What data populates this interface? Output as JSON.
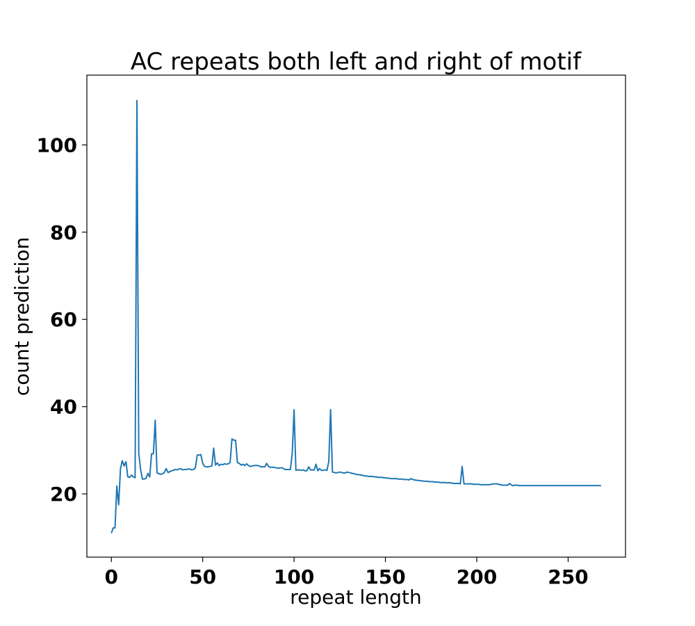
{
  "chart_data": {
    "type": "line",
    "title": "AC repeats both left and right of motif",
    "xlabel": "repeat length",
    "ylabel": "count prediction",
    "xlim": [
      -13.4,
      281.4
    ],
    "ylim": [
      5.5,
      116
    ],
    "xticks": [
      0,
      50,
      100,
      150,
      200,
      250
    ],
    "yticks": [
      20,
      40,
      60,
      80,
      100
    ],
    "grid": false,
    "line_color": "#1f77b4",
    "series": [
      {
        "points": [
          [
            0,
            11
          ],
          [
            1,
            12.2
          ],
          [
            2,
            12.2
          ],
          [
            3,
            21.8
          ],
          [
            4,
            17.5
          ],
          [
            5,
            25.8
          ],
          [
            6,
            27.6
          ],
          [
            7,
            26.4
          ],
          [
            8,
            27.4
          ],
          [
            9,
            23.9
          ],
          [
            10,
            23.8
          ],
          [
            11,
            24.3
          ],
          [
            12,
            23.9
          ],
          [
            13,
            23.7
          ],
          [
            14,
            110.2
          ],
          [
            15,
            29.3
          ],
          [
            16,
            25.6
          ],
          [
            17,
            23.4
          ],
          [
            18,
            23.4
          ],
          [
            19,
            23.6
          ],
          [
            20,
            24.7
          ],
          [
            21,
            23.9
          ],
          [
            22,
            29.2
          ],
          [
            23,
            29.2
          ],
          [
            24,
            36.9
          ],
          [
            25,
            24.8
          ],
          [
            26,
            24.6
          ],
          [
            27,
            24.5
          ],
          [
            28,
            24.6
          ],
          [
            29,
            24.9
          ],
          [
            30,
            25.8
          ],
          [
            31,
            24.9
          ],
          [
            32,
            25.1
          ],
          [
            33,
            25.3
          ],
          [
            34,
            25.4
          ],
          [
            35,
            25.6
          ],
          [
            36,
            25.5
          ],
          [
            37,
            25.7
          ],
          [
            38,
            25.8
          ],
          [
            39,
            25.5
          ],
          [
            40,
            25.6
          ],
          [
            41,
            25.6
          ],
          [
            42,
            25.7
          ],
          [
            43,
            25.7
          ],
          [
            44,
            25.5
          ],
          [
            45,
            25.6
          ],
          [
            46,
            26
          ],
          [
            47,
            28.9
          ],
          [
            48,
            28.9
          ],
          [
            49,
            29
          ],
          [
            50,
            27
          ],
          [
            51,
            26.3
          ],
          [
            52,
            26.2
          ],
          [
            53,
            26.2
          ],
          [
            54,
            26.3
          ],
          [
            55,
            26.4
          ],
          [
            56,
            30.5
          ],
          [
            57,
            26.6
          ],
          [
            58,
            27.1
          ],
          [
            59,
            26.5
          ],
          [
            60,
            26.8
          ],
          [
            61,
            26.7
          ],
          [
            62,
            26.9
          ],
          [
            63,
            26.8
          ],
          [
            64,
            26.9
          ],
          [
            65,
            27.2
          ],
          [
            66,
            32.6
          ],
          [
            67,
            32.3
          ],
          [
            68,
            32.3
          ],
          [
            69,
            27.2
          ],
          [
            70,
            27
          ],
          [
            71,
            26.6
          ],
          [
            72,
            26.8
          ],
          [
            73,
            26.5
          ],
          [
            74,
            26.9
          ],
          [
            75,
            26.5
          ],
          [
            76,
            26.3
          ],
          [
            77,
            26.4
          ],
          [
            78,
            26.5
          ],
          [
            79,
            26.5
          ],
          [
            80,
            26.5
          ],
          [
            81,
            26.4
          ],
          [
            82,
            26.2
          ],
          [
            83,
            26.2
          ],
          [
            84,
            26.2
          ],
          [
            85,
            27
          ],
          [
            86,
            26.3
          ],
          [
            87,
            26.1
          ],
          [
            88,
            26.1
          ],
          [
            89,
            26.1
          ],
          [
            90,
            26
          ],
          [
            91,
            25.9
          ],
          [
            92,
            25.9
          ],
          [
            93,
            26
          ],
          [
            94,
            25.9
          ],
          [
            95,
            25.6
          ],
          [
            96,
            25.6
          ],
          [
            97,
            25.6
          ],
          [
            98,
            25.6
          ],
          [
            99,
            29.3
          ],
          [
            100,
            39.3
          ],
          [
            101,
            25.4
          ],
          [
            102,
            25.5
          ],
          [
            103,
            25.5
          ],
          [
            104,
            25.4
          ],
          [
            105,
            25.5
          ],
          [
            106,
            25.3
          ],
          [
            107,
            25.3
          ],
          [
            108,
            26.2
          ],
          [
            109,
            25.5
          ],
          [
            110,
            25.5
          ],
          [
            111,
            25.5
          ],
          [
            112,
            26.8
          ],
          [
            113,
            25.3
          ],
          [
            114,
            25.8
          ],
          [
            115,
            25.4
          ],
          [
            116,
            25.4
          ],
          [
            117,
            25.5
          ],
          [
            118,
            25.4
          ],
          [
            119,
            27.4
          ],
          [
            120,
            39.3
          ],
          [
            121,
            25
          ],
          [
            122,
            24.9
          ],
          [
            123,
            24.8
          ],
          [
            124,
            24.9
          ],
          [
            125,
            25
          ],
          [
            126,
            24.9
          ],
          [
            127,
            24.8
          ],
          [
            128,
            24.8
          ],
          [
            129,
            25
          ],
          [
            130,
            24.9
          ],
          [
            131,
            24.8
          ],
          [
            132,
            24.7
          ],
          [
            133,
            24.6
          ],
          [
            134,
            24.5
          ],
          [
            135,
            24.4
          ],
          [
            136,
            24.4
          ],
          [
            137,
            24.3
          ],
          [
            138,
            24.2
          ],
          [
            139,
            24.1
          ],
          [
            140,
            24.1
          ],
          [
            141,
            24
          ],
          [
            142,
            24
          ],
          [
            143,
            24
          ],
          [
            144,
            23.9
          ],
          [
            145,
            23.9
          ],
          [
            146,
            23.8
          ],
          [
            147,
            23.8
          ],
          [
            148,
            23.8
          ],
          [
            149,
            23.7
          ],
          [
            150,
            23.7
          ],
          [
            151,
            23.6
          ],
          [
            152,
            23.6
          ],
          [
            153,
            23.5
          ],
          [
            154,
            23.5
          ],
          [
            155,
            23.5
          ],
          [
            156,
            23.5
          ],
          [
            157,
            23.4
          ],
          [
            158,
            23.4
          ],
          [
            159,
            23.4
          ],
          [
            160,
            23.3
          ],
          [
            161,
            23.3
          ],
          [
            162,
            23.3
          ],
          [
            163,
            23.2
          ],
          [
            164,
            23.5
          ],
          [
            165,
            23.3
          ],
          [
            166,
            23.2
          ],
          [
            167,
            23.1
          ],
          [
            168,
            23.1
          ],
          [
            169,
            23
          ],
          [
            170,
            23
          ],
          [
            171,
            22.9
          ],
          [
            172,
            22.9
          ],
          [
            173,
            22.9
          ],
          [
            174,
            22.8
          ],
          [
            175,
            22.8
          ],
          [
            176,
            22.8
          ],
          [
            177,
            22.7
          ],
          [
            178,
            22.7
          ],
          [
            179,
            22.7
          ],
          [
            180,
            22.6
          ],
          [
            181,
            22.6
          ],
          [
            182,
            22.6
          ],
          [
            183,
            22.6
          ],
          [
            184,
            22.5
          ],
          [
            185,
            22.6
          ],
          [
            186,
            22.5
          ],
          [
            187,
            22.4
          ],
          [
            188,
            22.4
          ],
          [
            189,
            22.4
          ],
          [
            190,
            22.4
          ],
          [
            191,
            22.3
          ],
          [
            192,
            26.3
          ],
          [
            193,
            22.3
          ],
          [
            194,
            22.3
          ],
          [
            195,
            22.3
          ],
          [
            196,
            22.3
          ],
          [
            197,
            22.3
          ],
          [
            198,
            22.2
          ],
          [
            199,
            22.2
          ],
          [
            200,
            22.2
          ],
          [
            201,
            22.2
          ],
          [
            202,
            22.1
          ],
          [
            203,
            22.1
          ],
          [
            204,
            22.1
          ],
          [
            205,
            22.1
          ],
          [
            206,
            22.1
          ],
          [
            207,
            22.1
          ],
          [
            208,
            22.2
          ],
          [
            209,
            22.3
          ],
          [
            210,
            22.3
          ],
          [
            211,
            22.3
          ],
          [
            212,
            22.2
          ],
          [
            213,
            22.1
          ],
          [
            214,
            22
          ],
          [
            215,
            22
          ],
          [
            216,
            22
          ],
          [
            217,
            22
          ],
          [
            218,
            22.4
          ],
          [
            219,
            22
          ],
          [
            220,
            21.9
          ],
          [
            221,
            22
          ],
          [
            222,
            22
          ],
          [
            223,
            21.9
          ],
          [
            224,
            21.9
          ],
          [
            225,
            21.9
          ],
          [
            226,
            21.9
          ],
          [
            227,
            21.9
          ],
          [
            228,
            21.9
          ],
          [
            229,
            21.9
          ],
          [
            230,
            21.9
          ],
          [
            231,
            21.9
          ],
          [
            232,
            21.9
          ],
          [
            233,
            21.9
          ],
          [
            234,
            21.9
          ],
          [
            235,
            21.9
          ],
          [
            236,
            21.9
          ],
          [
            237,
            21.9
          ],
          [
            238,
            21.9
          ],
          [
            239,
            21.9
          ],
          [
            240,
            21.9
          ],
          [
            241,
            21.9
          ],
          [
            242,
            21.9
          ],
          [
            243,
            21.9
          ],
          [
            244,
            21.9
          ],
          [
            245,
            21.9
          ],
          [
            246,
            21.9
          ],
          [
            247,
            21.9
          ],
          [
            248,
            21.9
          ],
          [
            249,
            21.9
          ],
          [
            250,
            21.9
          ],
          [
            251,
            21.9
          ],
          [
            252,
            21.9
          ],
          [
            253,
            21.9
          ],
          [
            254,
            21.9
          ],
          [
            255,
            21.9
          ],
          [
            256,
            21.9
          ],
          [
            257,
            21.9
          ],
          [
            258,
            21.9
          ],
          [
            259,
            21.9
          ],
          [
            260,
            21.9
          ],
          [
            261,
            21.9
          ],
          [
            262,
            21.9
          ],
          [
            263,
            21.9
          ],
          [
            264,
            21.9
          ],
          [
            265,
            21.9
          ],
          [
            266,
            21.9
          ],
          [
            267,
            21.9
          ],
          [
            268,
            21.9
          ]
        ]
      }
    ]
  }
}
